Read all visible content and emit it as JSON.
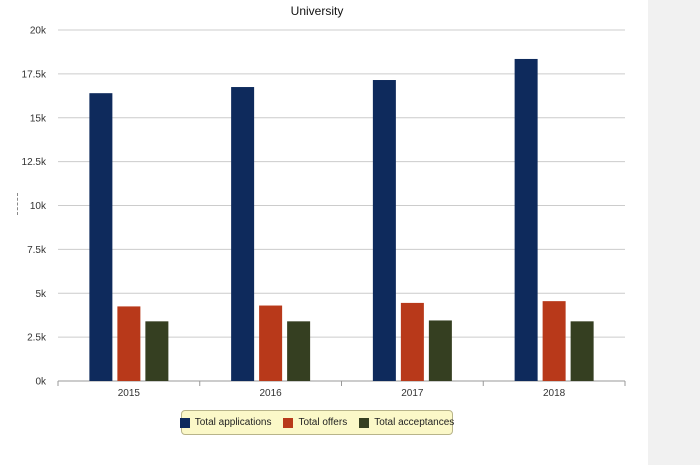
{
  "chart_data": {
    "type": "bar",
    "title": "University",
    "categories": [
      "2015",
      "2016",
      "2017",
      "2018"
    ],
    "series": [
      {
        "name": "Total applications",
        "color": "#0e2a5c",
        "values": [
          16400,
          16750,
          17150,
          18350
        ]
      },
      {
        "name": "Total offers",
        "color": "#b8391a",
        "values": [
          4250,
          4300,
          4450,
          4550
        ]
      },
      {
        "name": "Total acceptances",
        "color": "#353f21",
        "values": [
          3400,
          3400,
          3450,
          3400
        ]
      }
    ],
    "ylim": [
      0,
      20000
    ],
    "yticks": [
      0,
      2500,
      5000,
      7500,
      10000,
      12500,
      15000,
      17500,
      20000
    ],
    "ytick_labels": [
      "0k",
      "2.5k",
      "5k",
      "7.5k",
      "10k",
      "12.5k",
      "15k",
      "17.5k",
      "20k"
    ],
    "grid": true,
    "legend_position": "bottom-center"
  }
}
